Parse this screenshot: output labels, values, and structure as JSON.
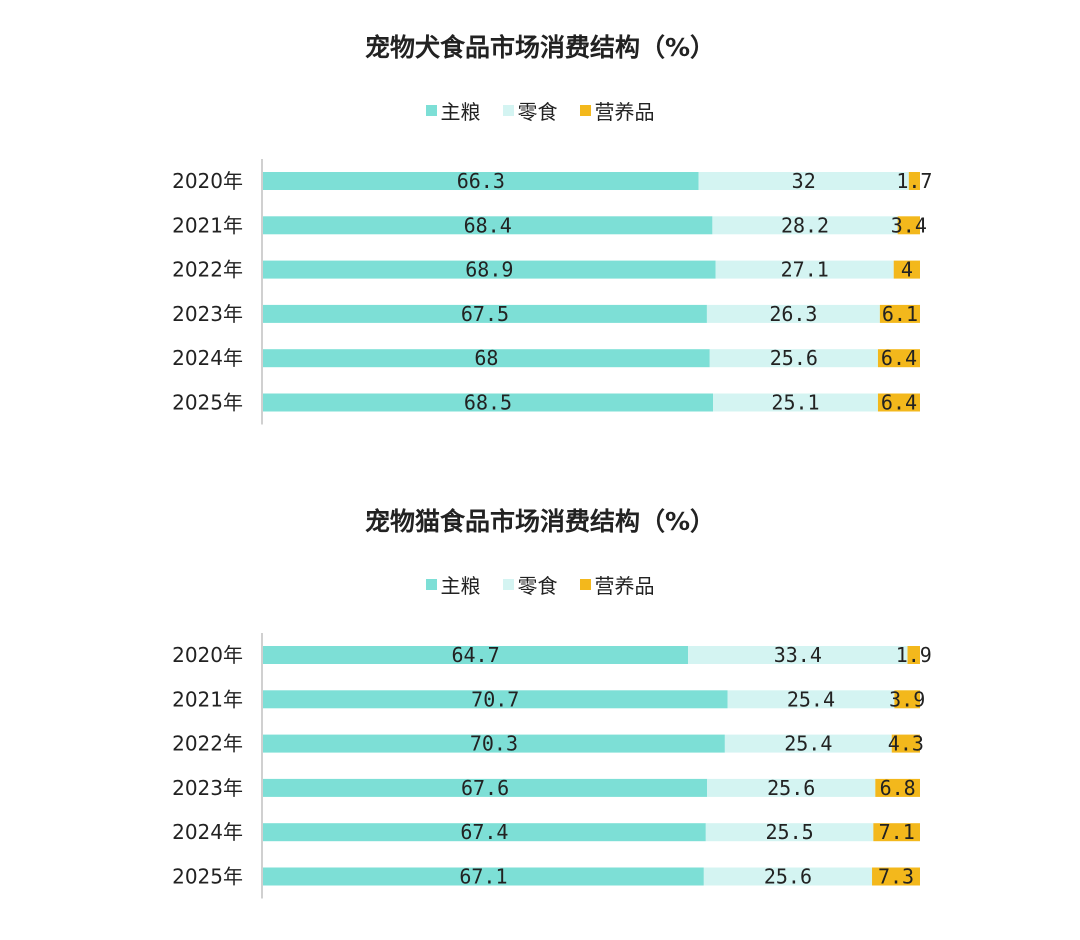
{
  "colors": {
    "主粮": "#7ddfd6",
    "零食": "#d4f4f2",
    "营养品": "#f3b81c"
  },
  "chart_data": [
    {
      "type": "bar",
      "orientation": "horizontal",
      "stacked": true,
      "title": "宠物犬食品市场消费结构（%）",
      "legend_position": "top",
      "categories": [
        "2020年",
        "2021年",
        "2022年",
        "2023年",
        "2024年",
        "2025年"
      ],
      "series": [
        {
          "name": "主粮",
          "values": [
            66.3,
            68.4,
            68.9,
            67.5,
            68,
            68.5
          ],
          "labels": [
            "66.3",
            "68.4",
            "68.9",
            "67.5",
            "68",
            "68.5"
          ]
        },
        {
          "name": "零食",
          "values": [
            32,
            28.2,
            27.1,
            26.3,
            25.6,
            25.1
          ],
          "labels": [
            "32",
            "28.2",
            "27.1",
            "26.3",
            "25.6",
            "25.1"
          ]
        },
        {
          "name": "营养品",
          "values": [
            1.7,
            3.4,
            4,
            6.1,
            6.4,
            6.4
          ],
          "labels": [
            "1.7",
            "3.4",
            "4",
            "6.1",
            "6.4",
            "6.4"
          ]
        }
      ]
    },
    {
      "type": "bar",
      "orientation": "horizontal",
      "stacked": true,
      "title": "宠物猫食品市场消费结构（%）",
      "legend_position": "top",
      "categories": [
        "2020年",
        "2021年",
        "2022年",
        "2023年",
        "2024年",
        "2025年"
      ],
      "series": [
        {
          "name": "主粮",
          "values": [
            64.7,
            70.7,
            70.3,
            67.6,
            67.4,
            67.1
          ],
          "labels": [
            "64.7",
            "70.7",
            "70.3",
            "67.6",
            "67.4",
            "67.1"
          ]
        },
        {
          "name": "零食",
          "values": [
            33.4,
            25.4,
            25.4,
            25.6,
            25.5,
            25.6
          ],
          "labels": [
            "33.4",
            "25.4",
            "25.4",
            "25.6",
            "25.5",
            "25.6"
          ]
        },
        {
          "name": "营养品",
          "values": [
            1.9,
            3.9,
            4.3,
            6.8,
            7.1,
            7.3
          ],
          "labels": [
            "1.9",
            "3.9",
            "4.3",
            "6.8",
            "7.1",
            "7.3"
          ]
        }
      ]
    }
  ]
}
